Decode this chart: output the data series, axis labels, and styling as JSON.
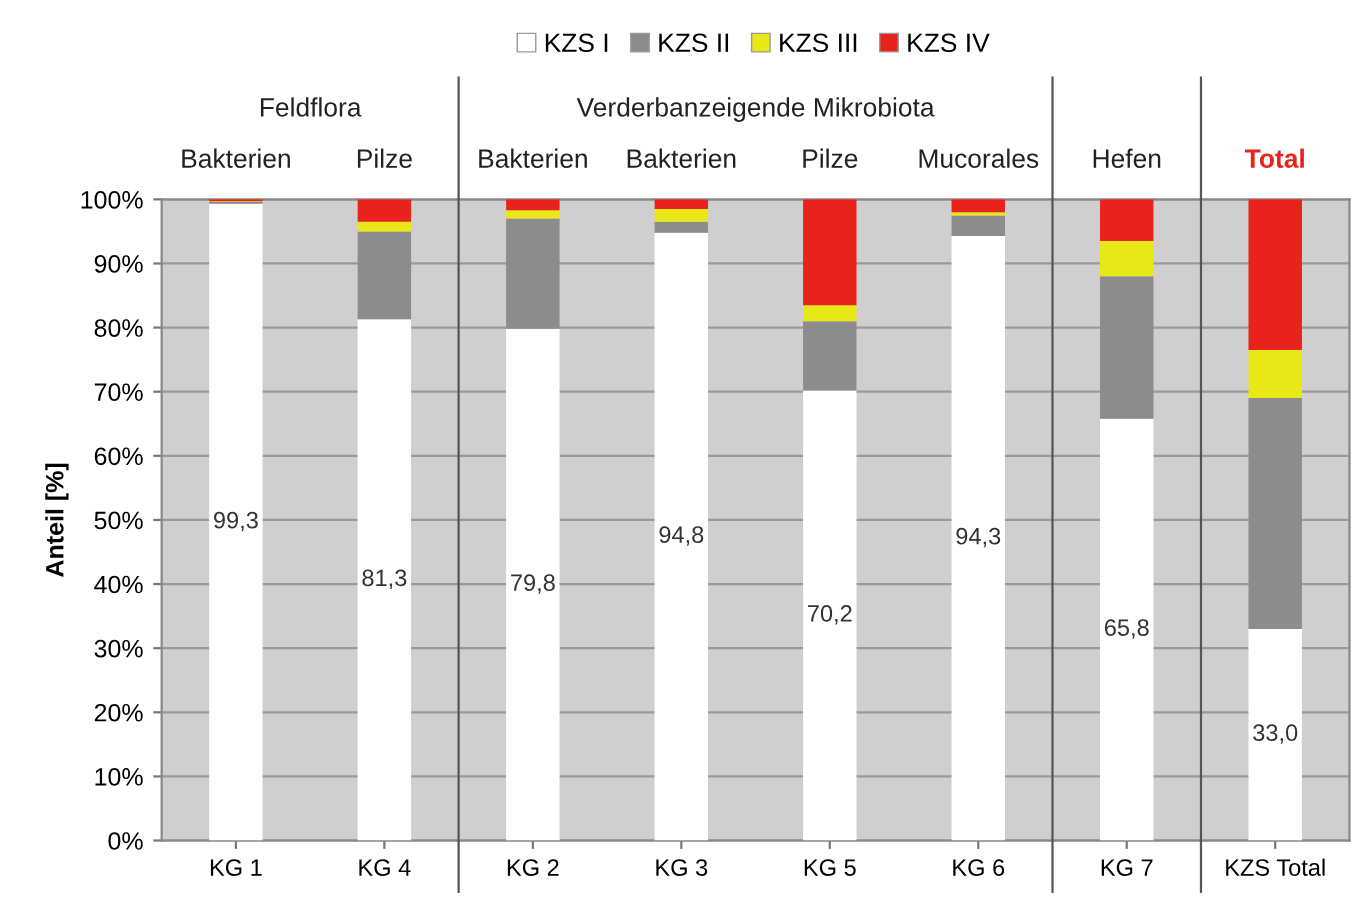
{
  "chart_data": {
    "type": "bar",
    "stacked": true,
    "ylabel": "Anteil [%]",
    "categories": [
      "KG 1",
      "KG 4",
      "KG 2",
      "KG 3",
      "KG 5",
      "KG 6",
      "KG 7",
      "KZS Total"
    ],
    "series": [
      {
        "name": "KZS I",
        "color": "#ffffff",
        "values": [
          99.3,
          81.3,
          79.8,
          94.8,
          70.2,
          94.3,
          65.8,
          33.0
        ],
        "value_labels": [
          "99,3",
          "81,3",
          "79,8",
          "94,8",
          "70,2",
          "94,3",
          "65,8",
          "33,0"
        ]
      },
      {
        "name": "KZS II",
        "color": "#8c8c8c",
        "values": [
          0.3,
          13.7,
          17.2,
          1.7,
          10.8,
          3.2,
          22.2,
          36.0
        ]
      },
      {
        "name": "KZS III",
        "color": "#e8e817",
        "values": [
          0.1,
          1.5,
          1.3,
          2.0,
          2.5,
          0.5,
          5.5,
          7.5
        ]
      },
      {
        "name": "KZS IV",
        "color": "#e8231c",
        "values": [
          0.3,
          3.5,
          1.7,
          1.5,
          16.5,
          2.0,
          6.5,
          23.5
        ]
      }
    ],
    "ylim": [
      0,
      100
    ],
    "yticks": [
      {
        "value": 0,
        "label": "0%"
      },
      {
        "value": 10,
        "label": "10%"
      },
      {
        "value": 20,
        "label": "20%"
      },
      {
        "value": 30,
        "label": "30%"
      },
      {
        "value": 40,
        "label": "40%"
      },
      {
        "value": 50,
        "label": "50%"
      },
      {
        "value": 60,
        "label": "60%"
      },
      {
        "value": 70,
        "label": "70%"
      },
      {
        "value": 80,
        "label": "80%"
      },
      {
        "value": 90,
        "label": "90%"
      },
      {
        "value": 100,
        "label": "100%"
      }
    ],
    "annotations": [
      "Feldflora",
      "Verderbanzeigende Mikrobiota",
      "Bakterien",
      "Pilze",
      "Bakterien",
      "Bakterien",
      "Pilze",
      "Mucorales",
      "Hefen",
      "Total"
    ],
    "grid": "y",
    "legend": "top"
  }
}
